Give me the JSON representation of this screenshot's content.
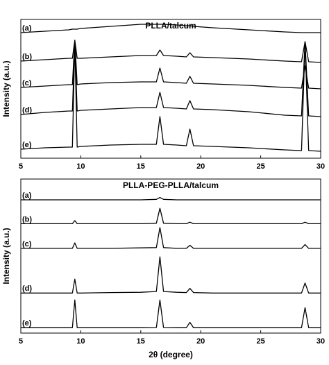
{
  "chart_data": [
    {
      "type": "line",
      "title": "PLLA/talcum",
      "ylabel": "Intensity (a.u.)",
      "x": [
        5,
        7,
        9,
        9.3,
        9.5,
        9.7,
        10,
        12.5,
        15,
        16.3,
        16.6,
        16.9,
        18,
        18.8,
        19.1,
        19.4,
        21,
        24,
        27,
        28.4,
        28.7,
        29,
        30
      ],
      "xlim": [
        5,
        30
      ],
      "xticks": [
        5,
        10,
        15,
        20,
        25,
        30
      ],
      "ylim": [
        0,
        100
      ],
      "grid": false,
      "series": [
        {
          "name": "(a)",
          "color": "#000000",
          "values": [
            90.5,
            91.5,
            92.5,
            93,
            93,
            93,
            93.5,
            95,
            96.5,
            96.5,
            96.5,
            96.5,
            96,
            95.5,
            95.5,
            95,
            94,
            92.5,
            91,
            90.5,
            90.5,
            90.5,
            90.5
          ]
        },
        {
          "name": "(b)",
          "color": "#000000",
          "values": [
            70,
            71,
            72,
            72,
            85,
            72,
            72,
            73,
            74,
            74,
            78,
            74,
            73.5,
            73,
            76,
            73,
            72.5,
            71.5,
            70,
            69.5,
            84,
            69.5,
            69
          ]
        },
        {
          "name": "(c)",
          "color": "#000000",
          "values": [
            51,
            52,
            53,
            53,
            85,
            53,
            53.5,
            54.5,
            55,
            55,
            65,
            55,
            54.5,
            54,
            59,
            54,
            53.5,
            52.5,
            51,
            50.5,
            66.5,
            50.5,
            50
          ]
        },
        {
          "name": "(d)",
          "color": "#000000",
          "values": [
            31.5,
            33,
            34,
            34,
            84,
            34,
            34.5,
            35.5,
            36.5,
            36.5,
            47.5,
            36.5,
            36,
            35.5,
            41.5,
            35.5,
            35,
            33.5,
            31,
            30.5,
            84,
            30.5,
            30
          ]
        },
        {
          "name": "(e)",
          "color": "#000000",
          "values": [
            6.5,
            7.5,
            8,
            8,
            83,
            8,
            8.5,
            9.5,
            10,
            10,
            30,
            10,
            9.5,
            9,
            21,
            9,
            8.5,
            7.5,
            6,
            5.5,
            83,
            5.5,
            5
          ]
        }
      ]
    },
    {
      "type": "line",
      "title": "PLLA-PEG-PLLA/talcum",
      "ylabel": "Intensity (a.u.)",
      "xlabel": "2θ (degree)",
      "x": [
        5,
        7,
        9,
        9.3,
        9.5,
        9.7,
        10,
        12.5,
        15,
        16.3,
        16.6,
        16.9,
        18,
        18.8,
        19.1,
        19.4,
        21,
        24,
        27,
        28.4,
        28.7,
        29,
        30
      ],
      "xlim": [
        5,
        30
      ],
      "xticks": [
        5,
        10,
        15,
        20,
        25,
        30
      ],
      "ylim": [
        0,
        100
      ],
      "grid": false,
      "series": [
        {
          "name": "(a)",
          "color": "#000000",
          "values": [
            86.5,
            86.5,
            86.5,
            86.5,
            86.5,
            86.5,
            86.5,
            86.5,
            86.5,
            86.8,
            88,
            86.8,
            86.5,
            86.5,
            86.5,
            86.5,
            86.5,
            86.5,
            86.5,
            86.5,
            86.5,
            86.5,
            86.5
          ]
        },
        {
          "name": "(b)",
          "color": "#000000",
          "values": [
            71,
            71,
            71,
            71,
            73,
            71,
            71,
            71,
            71,
            71.3,
            81,
            71.3,
            71,
            71,
            72,
            71,
            71,
            71,
            71,
            71,
            72,
            71,
            71
          ]
        },
        {
          "name": "(c)",
          "color": "#000000",
          "values": [
            55,
            55,
            55,
            55,
            58.5,
            55,
            55,
            55,
            55.3,
            55.5,
            68.5,
            55.5,
            55,
            55,
            57,
            55,
            55,
            55,
            55,
            55,
            57.5,
            55,
            55
          ]
        },
        {
          "name": "(d)",
          "color": "#000000",
          "values": [
            26,
            26,
            26,
            26,
            35,
            26,
            26,
            26.3,
            26.5,
            27,
            49.5,
            27,
            26.5,
            26.3,
            29,
            26.3,
            26,
            26,
            26,
            26,
            32.5,
            26,
            26
          ]
        },
        {
          "name": "(e)",
          "color": "#000000",
          "values": [
            3.5,
            3.5,
            3.5,
            3.5,
            21.5,
            3.5,
            3.5,
            3.5,
            3.5,
            3.6,
            21.5,
            3.6,
            3.5,
            3.5,
            7,
            3.5,
            3.5,
            3.5,
            3.5,
            3.5,
            16.5,
            3.5,
            3.5
          ]
        }
      ]
    }
  ]
}
